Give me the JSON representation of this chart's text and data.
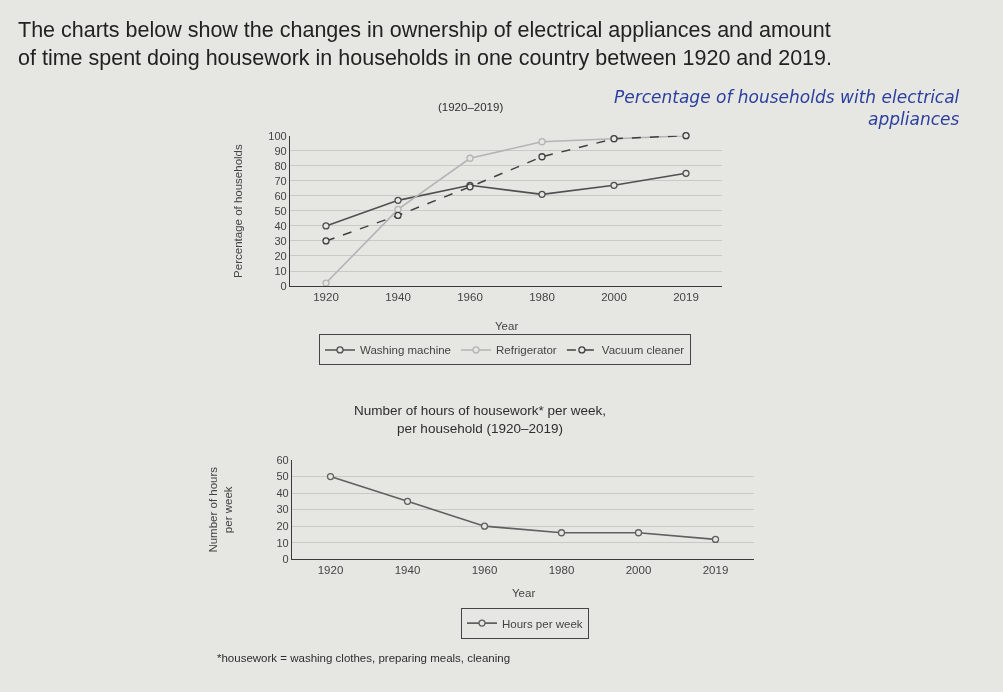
{
  "chart_data": [
    {
      "type": "line",
      "title": "The charts below show the changes in ownership of electrical appliances and amount of time spent doing housework in households in one country between 1920 and 2019.",
      "subtitle": "(1920–2019)",
      "annotations": [
        "Percentage of households with electrical appliances"
      ],
      "xlabel": "Year",
      "ylabel": "Percentage of households",
      "categories": [
        "1920",
        "1940",
        "1960",
        "1980",
        "2000",
        "2019"
      ],
      "series": [
        {
          "name": "Washing machine",
          "color": "#505050",
          "values": [
            40,
            57,
            67,
            61,
            67,
            75
          ]
        },
        {
          "name": "Refrigerator",
          "color": "#b4b4b4",
          "values": [
            2,
            51,
            85,
            96,
            98,
            100
          ]
        },
        {
          "name": "Vacuum cleaner",
          "color": "#404040",
          "line_style": "dashed",
          "values": [
            30,
            47,
            66,
            86,
            98,
            100
          ]
        }
      ],
      "ylim": [
        0,
        100
      ],
      "yticks": [
        0,
        10,
        20,
        30,
        40,
        50,
        60,
        70,
        80,
        90,
        100
      ],
      "grid": "y",
      "legend": "bottom",
      "marker": "circle",
      "line_style": "solid"
    },
    {
      "type": "line",
      "title": "Number of hours of housework* per week, per household (1920–2019)",
      "annotations": [
        "*housework = washing clothes, preparing meals, cleaning"
      ],
      "xlabel": "Year",
      "ylabel": "Number of hours per week",
      "categories": [
        "1920",
        "1940",
        "1960",
        "1980",
        "2000",
        "2019"
      ],
      "series": [
        {
          "name": "Hours per week",
          "color": "#606060",
          "values": [
            50,
            35,
            20,
            16,
            16,
            12
          ]
        }
      ],
      "ylim": [
        0,
        60
      ],
      "yticks": [
        0,
        10,
        20,
        30,
        40,
        50,
        60
      ],
      "grid": "y",
      "legend": "bottom",
      "marker": "circle",
      "line_style": "solid"
    }
  ]
}
